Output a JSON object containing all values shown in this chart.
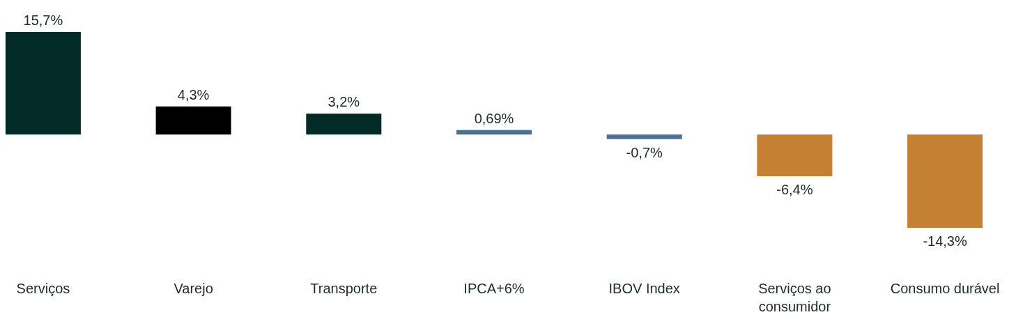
{
  "chart_data": {
    "type": "bar",
    "categories": [
      "Serviços",
      "Varejo",
      "Transporte",
      "IPCA+6%",
      "IBOV Index",
      "Serviços ao consumidor",
      "Consumo durável"
    ],
    "values": [
      15.7,
      4.3,
      3.2,
      0.69,
      -0.7,
      -6.4,
      -14.3
    ],
    "colors": [
      "#022a27",
      "#000000",
      "#022a27",
      "#4a6f96",
      "#4a6f96",
      "#c48134",
      "#c48134"
    ],
    "value_labels": [
      "15,7%",
      "4,3%",
      "3,2%",
      "0,69%",
      "-0,7%",
      "-6,4%",
      "-14,3%"
    ]
  }
}
